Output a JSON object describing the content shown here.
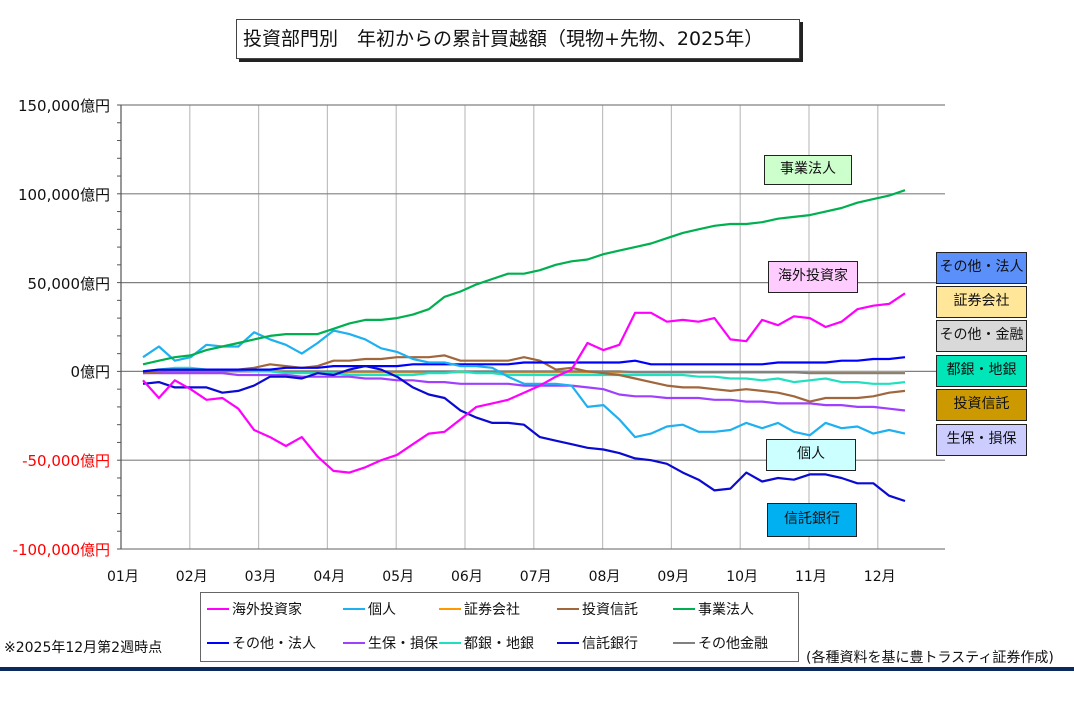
{
  "chart_data": {
    "type": "line",
    "title": "投資部門別　年初からの累計買越額（現物+先物、2025年）",
    "xlabel": "",
    "ylabel": "",
    "y_unit": "億円",
    "ylim": [
      -100000,
      150000
    ],
    "y_ticks": [
      {
        "value": 150000,
        "label": "150,000億円"
      },
      {
        "value": 100000,
        "label": "100,000億円"
      },
      {
        "value": 50000,
        "label": "50,000億円"
      },
      {
        "value": 0,
        "label": "0億円"
      },
      {
        "value": -50000,
        "label": "-50,000億円"
      },
      {
        "value": -100000,
        "label": "-100,000億円"
      }
    ],
    "x_tick_labels": [
      "01月",
      "02月",
      "03月",
      "04月",
      "05月",
      "06月",
      "07月",
      "08月",
      "09月",
      "10月",
      "11月",
      "12月"
    ],
    "grid": true,
    "legend_position": "bottom",
    "n_points": 49,
    "series": [
      {
        "name": "海外投資家",
        "color": "#ff00ff",
        "values": [
          -5000,
          -15000,
          -5000,
          -10000,
          -16000,
          -15000,
          -21000,
          -33000,
          -37000,
          -42000,
          -37000,
          -48000,
          -56000,
          -57000,
          -54000,
          -50000,
          -47000,
          -41000,
          -35000,
          -34000,
          -27000,
          -20000,
          -18000,
          -16000,
          -12000,
          -8000,
          -3000,
          1000,
          16000,
          12000,
          15000,
          33000,
          33000,
          28000,
          29000,
          28000,
          30000,
          18000,
          17000,
          29000,
          26000,
          31000,
          30000,
          25000,
          28000,
          35000,
          37000,
          38000,
          44000
        ]
      },
      {
        "name": "個人",
        "color": "#1eb0f0",
        "values": [
          8000,
          14000,
          6000,
          8000,
          15000,
          14000,
          14000,
          22000,
          18000,
          15000,
          10000,
          16000,
          23000,
          21000,
          18000,
          13000,
          11000,
          7000,
          5000,
          5000,
          3000,
          3000,
          2000,
          -3000,
          -7000,
          -7000,
          -7000,
          -8000,
          -20000,
          -19000,
          -27000,
          -37000,
          -35000,
          -31000,
          -30000,
          -34000,
          -34000,
          -33000,
          -29000,
          -32000,
          -29000,
          -34000,
          -36000,
          -29000,
          -32000,
          -31000,
          -35000,
          -33000,
          -35000
        ]
      },
      {
        "name": "証券会社",
        "color": "#ff9900",
        "values": [
          0,
          0,
          0,
          0,
          0,
          0,
          0,
          0,
          0,
          0,
          0,
          0,
          -500,
          -500,
          -500,
          -500,
          -500,
          -500,
          -500,
          -500,
          -500,
          -500,
          -500,
          -500,
          -500,
          -500,
          -500,
          -500,
          -500,
          -500,
          -500,
          -500,
          -500,
          -500,
          -500,
          -500,
          -500,
          -500,
          -500,
          -500,
          -500,
          -500,
          -500,
          -500,
          -500,
          -500,
          -500,
          -500,
          -500
        ]
      },
      {
        "name": "投資信託",
        "color": "#a0663c",
        "values": [
          -1000,
          0,
          1000,
          1000,
          1000,
          1000,
          1000,
          2000,
          4000,
          3000,
          2000,
          3000,
          6000,
          6000,
          7000,
          7000,
          8000,
          8000,
          8000,
          9000,
          6000,
          6000,
          6000,
          6000,
          8000,
          6000,
          1000,
          2000,
          0,
          -1000,
          -2000,
          -4000,
          -6000,
          -8000,
          -9000,
          -9000,
          -10000,
          -11000,
          -10000,
          -11000,
          -12000,
          -14000,
          -17000,
          -15000,
          -15000,
          -15000,
          -14000,
          -12000,
          -11000
        ]
      },
      {
        "name": "事業法人",
        "color": "#00b050",
        "values": [
          4000,
          6000,
          8000,
          9000,
          12000,
          14000,
          16000,
          18000,
          20000,
          21000,
          21000,
          21000,
          24000,
          27000,
          29000,
          29000,
          30000,
          32000,
          35000,
          42000,
          45000,
          49000,
          52000,
          55000,
          55000,
          57000,
          60000,
          62000,
          63000,
          66000,
          68000,
          70000,
          72000,
          75000,
          78000,
          80000,
          82000,
          83000,
          83000,
          84000,
          86000,
          87000,
          88000,
          90000,
          92000,
          95000,
          97000,
          99000,
          102000
        ]
      },
      {
        "name": "その他・法人",
        "color": "#0000ff",
        "values": [
          0,
          1000,
          1000,
          1000,
          1000,
          1000,
          1000,
          1000,
          1000,
          2000,
          2000,
          2000,
          3000,
          3000,
          3000,
          3000,
          3000,
          4000,
          4000,
          4000,
          4000,
          4000,
          4000,
          4000,
          5000,
          5000,
          5000,
          5000,
          5000,
          5000,
          5000,
          6000,
          4000,
          4000,
          4000,
          4000,
          4000,
          4000,
          4000,
          4000,
          5000,
          5000,
          5000,
          5000,
          6000,
          6000,
          7000,
          7000,
          8000
        ]
      },
      {
        "name": "生保・損保",
        "color": "#a040ff",
        "values": [
          -1000,
          -1000,
          -1000,
          -1000,
          -1000,
          -1000,
          -2000,
          -2000,
          -2000,
          -2000,
          -3000,
          -3000,
          -3000,
          -3000,
          -4000,
          -4000,
          -5000,
          -5000,
          -6000,
          -6000,
          -7000,
          -7000,
          -7000,
          -7000,
          -8000,
          -8000,
          -8000,
          -8000,
          -9000,
          -10000,
          -13000,
          -14000,
          -14000,
          -15000,
          -15000,
          -15000,
          -16000,
          -16000,
          -17000,
          -17000,
          -18000,
          -18000,
          -18000,
          -19000,
          -19000,
          -20000,
          -20000,
          -21000,
          -22000
        ]
      },
      {
        "name": "都銀・地銀",
        "color": "#20e0c0",
        "values": [
          0,
          1000,
          2000,
          2000,
          1000,
          1000,
          1000,
          0,
          0,
          -1000,
          -1000,
          -1000,
          -1000,
          -2000,
          -2000,
          -2000,
          -2000,
          -2000,
          -1000,
          -1000,
          0,
          -1000,
          -1000,
          -2000,
          -2000,
          -2000,
          -2000,
          -2000,
          -2000,
          -2000,
          -2000,
          -2000,
          -2000,
          -2000,
          -2000,
          -3000,
          -3000,
          -4000,
          -4000,
          -5000,
          -4000,
          -6000,
          -5000,
          -4000,
          -6000,
          -6000,
          -7000,
          -7000,
          -6000
        ]
      },
      {
        "name": "信託銀行",
        "color": "#0a0ad2",
        "values": [
          -7000,
          -6000,
          -9000,
          -9000,
          -9000,
          -12000,
          -11000,
          -8000,
          -3000,
          -3000,
          -4000,
          -1000,
          -2000,
          1000,
          3000,
          1000,
          -3000,
          -9000,
          -13000,
          -15000,
          -22000,
          -26000,
          -29000,
          -29000,
          -30000,
          -37000,
          -39000,
          -41000,
          -43000,
          -44000,
          -46000,
          -49000,
          -50000,
          -52000,
          -57000,
          -61000,
          -67000,
          -66000,
          -57000,
          -62000,
          -60000,
          -61000,
          -58000,
          -58000,
          -60000,
          -63000,
          -63000,
          -70000,
          -73000
        ]
      },
      {
        "name": "その他金融",
        "color": "#808080",
        "values": [
          0,
          0,
          0,
          0,
          0,
          0,
          0,
          0,
          0,
          0,
          0,
          0,
          0,
          0,
          0,
          0,
          0,
          0,
          0,
          0,
          0,
          0,
          0,
          0,
          0,
          0,
          0,
          0,
          0,
          0,
          0,
          -500,
          -500,
          -500,
          -500,
          -500,
          -500,
          -500,
          -500,
          -500,
          -500,
          -500,
          -1000,
          -1000,
          -1000,
          -1000,
          -1000,
          -1000,
          -1000
        ]
      }
    ],
    "annotations": [
      {
        "text": "事業法人",
        "bg": "#ccffcc"
      },
      {
        "text": "海外投資家",
        "bg": "#ffccff"
      },
      {
        "text": "個人",
        "bg": "#ccffff"
      },
      {
        "text": "信託銀行",
        "bg": "#00b0f0"
      },
      {
        "text": "その他・法人",
        "bg": "#5b8ff9"
      },
      {
        "text": "証券会社",
        "bg": "#ffe699"
      },
      {
        "text": "その他・金融",
        "bg": "#d9d9d9"
      },
      {
        "text": "都銀・地銀",
        "bg": "#00e6b8"
      },
      {
        "text": "投資信託",
        "bg": "#cc9900"
      },
      {
        "text": "生保・損保",
        "bg": "#ccccff"
      }
    ]
  },
  "footnote_left": "※2025年12月第2週時点",
  "footnote_right": "(各種資料を基に豊トラスティ証券作成)"
}
